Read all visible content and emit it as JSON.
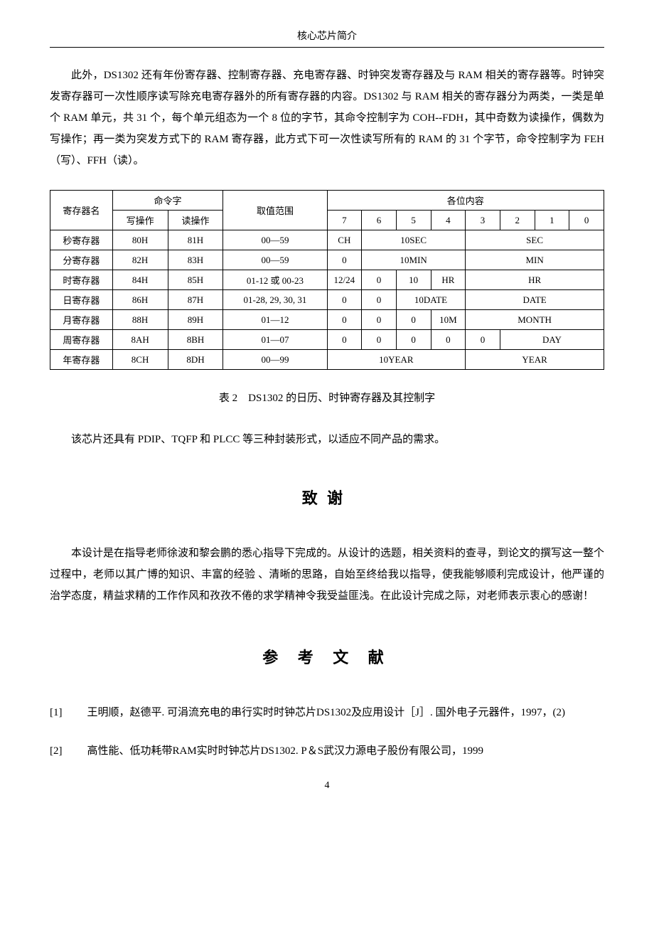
{
  "header": "核心芯片简介",
  "para1": "此外，DS1302 还有年份寄存器、控制寄存器、充电寄存器、时钟突发寄存器及与 RAM 相关的寄存器等。时钟突发寄存器可一次性顺序读写除充电寄存器外的所有寄存器的内容。DS1302 与 RAM 相关的寄存器分为两类，一类是单个 RAM 单元，共 31 个，每个单元组态为一个 8 位的字节，其命令控制字为 COH--FDH，其中奇数为读操作，偶数为写操作；再一类为突发方式下的 RAM 寄存器，此方式下可一次性读写所有的 RAM 的 31 个字节，命令控制字为 FEH（写）、FFH（读）。",
  "table": {
    "head": {
      "reg_name": "寄存器名",
      "cmd": "命令字",
      "write_op": "写操作",
      "read_op": "读操作",
      "range": "取值范围",
      "bits": "各位内容",
      "bit7": "7",
      "bit6": "6",
      "bit5": "5",
      "bit4": "4",
      "bit3": "3",
      "bit2": "2",
      "bit1": "1",
      "bit0": "0"
    },
    "rows": {
      "sec": {
        "name": "秒寄存器",
        "w": "80H",
        "r": "81H",
        "range": "00—59",
        "b7": "CH",
        "b654": "10SEC",
        "b30": "SEC"
      },
      "min": {
        "name": "分寄存器",
        "w": "82H",
        "r": "83H",
        "range": "00—59",
        "b7": "0",
        "b654": "10MIN",
        "b30": "MIN"
      },
      "hr": {
        "name": "时寄存器",
        "w": "84H",
        "r": "85H",
        "range": "01-12 或 00-23",
        "b7": "12/24",
        "b6": "0",
        "b5": "10",
        "b4": "HR",
        "b30": "HR"
      },
      "date": {
        "name": "日寄存器",
        "w": "86H",
        "r": "87H",
        "range": "01-28, 29, 30, 31",
        "b7": "0",
        "b6": "0",
        "b54": "10DATE",
        "b30": "DATE"
      },
      "mon": {
        "name": "月寄存器",
        "w": "88H",
        "r": "89H",
        "range": "01—12",
        "b7": "0",
        "b6": "0",
        "b5": "0",
        "b4": "10M",
        "b30": "MONTH"
      },
      "wk": {
        "name": "周寄存器",
        "w": "8AH",
        "r": "8BH",
        "range": "01—07",
        "b7": "0",
        "b6": "0",
        "b5": "0",
        "b4": "0",
        "b3": "0",
        "b20": "DAY"
      },
      "yr": {
        "name": "年寄存器",
        "w": "8CH",
        "r": "8DH",
        "range": "00—99",
        "b74": "10YEAR",
        "b30": "YEAR"
      }
    }
  },
  "table_caption": "表 2　DS1302 的日历、时钟寄存器及其控制字",
  "para2": "该芯片还具有 PDIP、TQFP 和 PLCC 等三种封装形式，以适应不同产品的需求。",
  "ack_heading": "致谢",
  "ack_text": "本设计是在指导老师徐波和黎会鹏的悉心指导下完成的。从设计的选题，相关资料的查寻，到论文的撰写这一整个过程中，老师以其广博的知识、丰富的经验 、清晰的思路，自始至终给我以指导，使我能够顺利完成设计，他严谨的治学态度，精益求精的工作作风和孜孜不倦的求学精神令我受益匪浅。在此设计完成之际，对老师表示衷心的感谢！",
  "refs_heading": "参 考 文 献",
  "refs": [
    {
      "num": "[1]",
      "text": "王明顺，赵德平. 可涓流充电的串行实时时钟芯片DS1302及应用设计［J］. 国外电子元器件，1997，(2)"
    },
    {
      "num": "[2]",
      "text": "高性能、低功耗带RAM实时时钟芯片DS1302. P＆S武汉力源电子股份有限公司，1999"
    }
  ],
  "page_number": "4"
}
